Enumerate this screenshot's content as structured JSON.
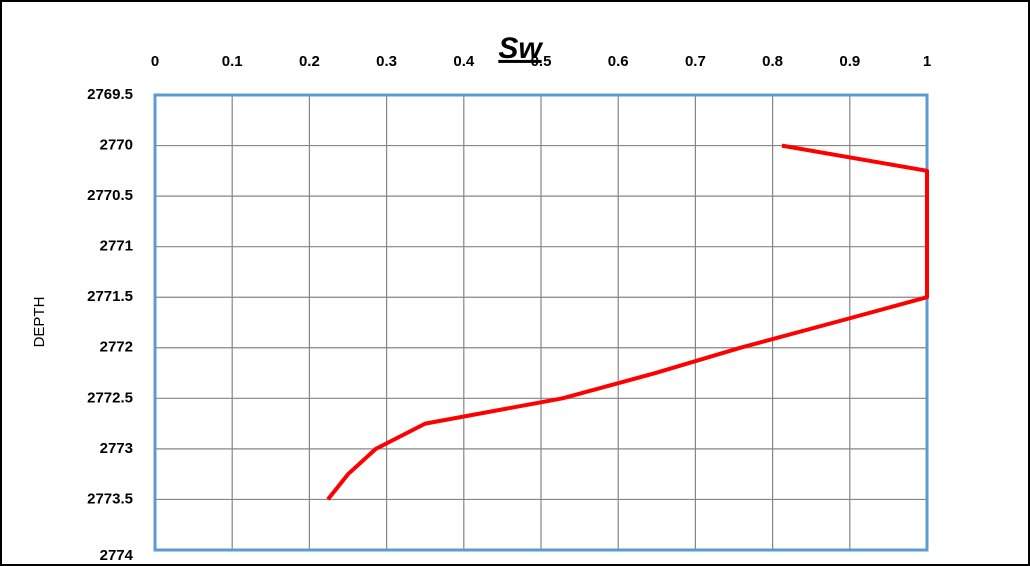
{
  "chart_data": {
    "type": "line",
    "title": "Sw",
    "y_label": "DEPTH",
    "x": [
      0.812,
      1,
      1,
      1,
      1,
      0.894,
      0.758,
      0.648,
      0.528,
      0.35,
      0.286,
      0.25,
      0.224
    ],
    "values": [
      2770,
      2770.25,
      2770.5,
      2771,
      2771.5,
      2771.72,
      2772,
      2772.25,
      2772.5,
      2772.75,
      2773,
      2773.25,
      2773.5
    ],
    "color": "#ff0000",
    "xlim": [
      0,
      1
    ],
    "xticks": [
      0,
      0.1,
      0.2,
      0.3,
      0.4,
      0.5,
      0.6,
      0.7,
      0.8,
      0.9,
      1
    ],
    "ylim": [
      2769.5,
      2774
    ],
    "yticks": [
      2769.5,
      2770,
      2770.5,
      2771,
      2771.5,
      2772,
      2772.5,
      2773,
      2773.5,
      2774
    ],
    "y_inverted": true,
    "x_axis_position": "top",
    "grid": true
  }
}
